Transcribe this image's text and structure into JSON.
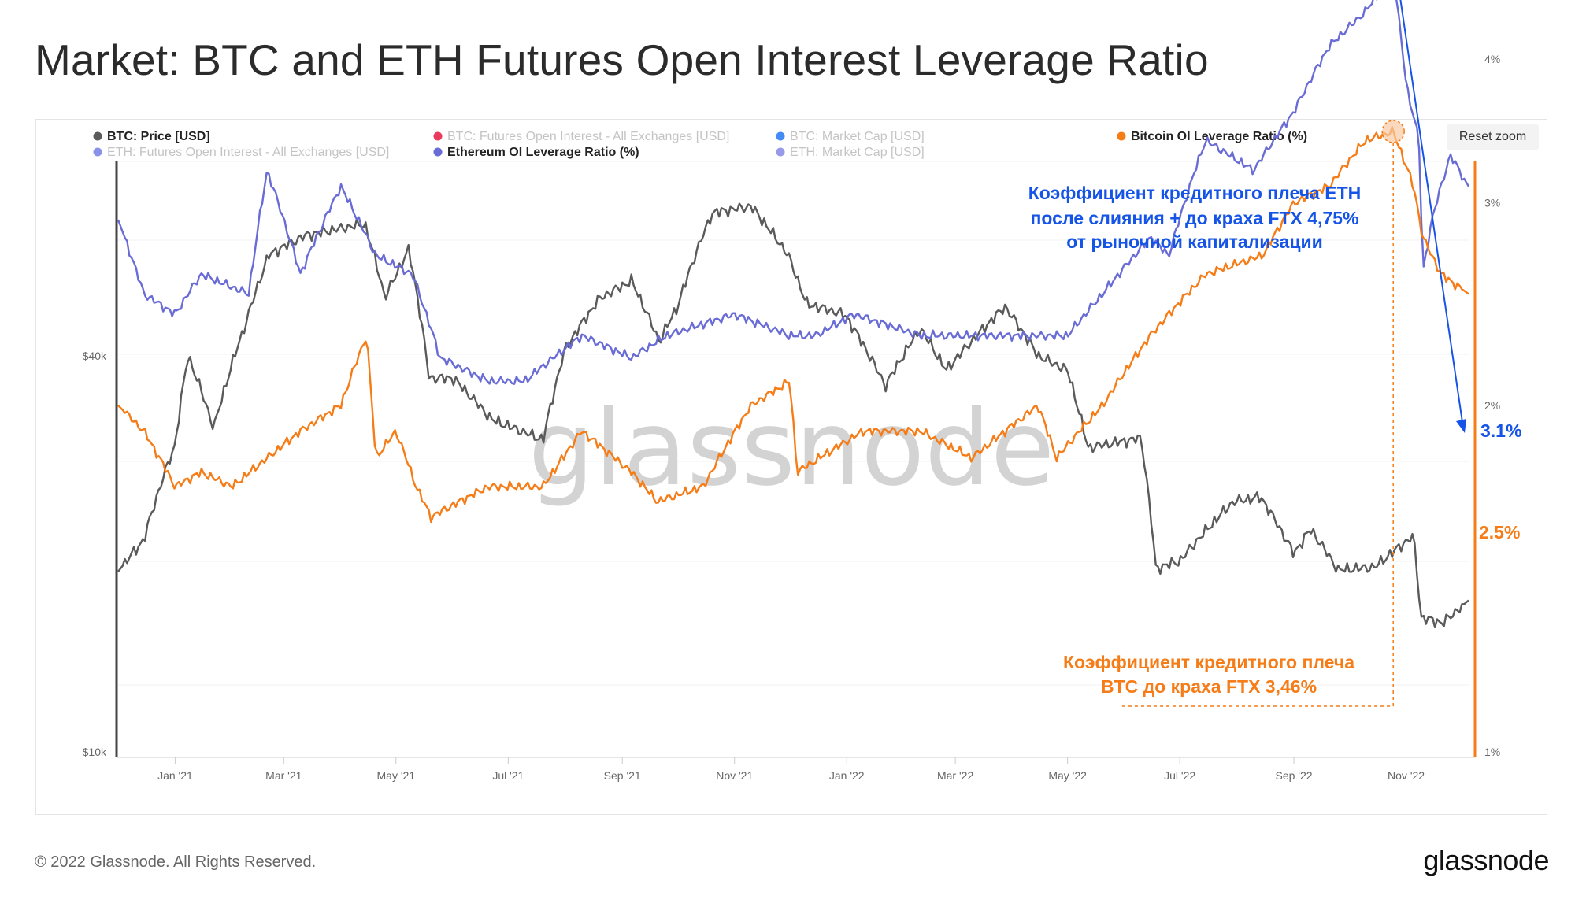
{
  "page_title": "Market: BTC and ETH Futures Open Interest Leverage Ratio",
  "reset_zoom_label": "Reset zoom",
  "watermark": "glassnode",
  "footer": {
    "copyright": "© 2022 Glassnode. All Rights Reserved.",
    "logo": "glassnode"
  },
  "colors": {
    "btc_price": "#5a5a5a",
    "eth_ratio": "#6a6cd6",
    "btc_ratio": "#f57c16",
    "eth_annotation": "#1554e6",
    "hidden": "#c8c8c8"
  },
  "legend": [
    {
      "label": "BTC: Price [USD]",
      "color": "#5a5a5a",
      "active": true
    },
    {
      "label": "BTC: Futures Open Interest - All Exchanges [USD]",
      "color": "#e8264d",
      "active": false
    },
    {
      "label": "BTC: Market Cap [USD]",
      "color": "#2f7ff5",
      "active": false
    },
    {
      "label": "Bitcoin OI Leverage Ratio (%)",
      "color": "#f57c16",
      "active": true
    },
    {
      "label": "ETH: Futures Open Interest - All Exchanges [USD]",
      "color": "#7b86e8",
      "active": false
    },
    {
      "label": "Ethereum OI Leverage Ratio (%)",
      "color": "#6a6cd6",
      "active": true
    },
    {
      "label": "ETH: Market Cap [USD]",
      "color": "#8e8ee8",
      "active": false
    }
  ],
  "annotations": {
    "eth": [
      "Коэффициент кредитного плеча ETH",
      "после слияния + до краха FTX 4,75%",
      "от рыночной капитализации"
    ],
    "btc": [
      "Коэффициент кредитного плеча",
      "BTC до краха FTX 3,46%"
    ],
    "eth_last": "3.1%",
    "btc_last": "2.5%"
  },
  "chart_data": {
    "type": "line",
    "title": "Market: BTC and ETH Futures Open Interest Leverage Ratio",
    "x_ticks": [
      "Jan '21",
      "Mar '21",
      "May '21",
      "Jul '21",
      "Sep '21",
      "Nov '21",
      "Jan '22",
      "Mar '22",
      "May '22",
      "Jul '22",
      "Sep '22",
      "Nov '22"
    ],
    "x_tick_dates": [
      "2021-01-01",
      "2021-03-01",
      "2021-05-01",
      "2021-07-01",
      "2021-09-01",
      "2021-11-01",
      "2022-01-01",
      "2022-03-01",
      "2022-05-01",
      "2022-07-01",
      "2022-09-01",
      "2022-11-01"
    ],
    "x_range": [
      "2020-12-01",
      "2022-12-05"
    ],
    "left_axis": {
      "label": "",
      "scale": "log",
      "ticks": [
        "$10k",
        "$40k"
      ],
      "tick_values": [
        10000,
        40000
      ],
      "ylim": [
        10000,
        70000
      ]
    },
    "right_axis": {
      "label": "",
      "scale": "log",
      "ticks": [
        "1%",
        "2%",
        "3%",
        "4%"
      ],
      "tick_values": [
        1,
        2,
        3,
        4
      ],
      "ylim": [
        1,
        5.5
      ]
    },
    "grid": true,
    "legend_position": "top",
    "series": [
      {
        "name": "BTC: Price [USD]",
        "axis": "left",
        "color": "#5a5a5a",
        "x": [
          "2020-12-01",
          "2020-12-15",
          "2021-01-01",
          "2021-01-08",
          "2021-01-22",
          "2021-02-08",
          "2021-02-21",
          "2021-03-13",
          "2021-04-14",
          "2021-04-25",
          "2021-05-08",
          "2021-05-19",
          "2021-06-01",
          "2021-06-22",
          "2021-07-20",
          "2021-08-01",
          "2021-08-20",
          "2021-09-06",
          "2021-09-21",
          "2021-10-01",
          "2021-10-20",
          "2021-11-10",
          "2021-11-30",
          "2021-12-10",
          "2021-12-31",
          "2022-01-22",
          "2022-02-10",
          "2022-02-24",
          "2022-03-28",
          "2022-04-15",
          "2022-05-01",
          "2022-05-12",
          "2022-06-10",
          "2022-06-18",
          "2022-07-01",
          "2022-07-30",
          "2022-08-14",
          "2022-09-01",
          "2022-09-10",
          "2022-09-25",
          "2022-10-15",
          "2022-11-05",
          "2022-11-09",
          "2022-11-21",
          "2022-12-05"
        ],
        "y": [
          18800,
          21000,
          29300,
          40000,
          31000,
          44500,
          57000,
          61000,
          63500,
          49000,
          58000,
          37000,
          37000,
          32000,
          29800,
          41000,
          49000,
          52000,
          42000,
          47500,
          66000,
          67500,
          57000,
          48000,
          46200,
          36000,
          44000,
          38000,
          47500,
          40000,
          38000,
          29000,
          30000,
          19000,
          19500,
          24000,
          24400,
          20000,
          21800,
          18900,
          19100,
          21300,
          16000,
          15700,
          17000
        ]
      },
      {
        "name": "Ethereum OI Leverage Ratio (%)",
        "axis": "right",
        "color": "#6a6cd6",
        "x": [
          "2020-12-01",
          "2020-12-15",
          "2021-01-01",
          "2021-01-15",
          "2021-02-10",
          "2021-02-20",
          "2021-03-10",
          "2021-04-01",
          "2021-04-20",
          "2021-05-10",
          "2021-05-25",
          "2021-06-20",
          "2021-07-10",
          "2021-08-10",
          "2021-09-06",
          "2021-09-25",
          "2021-11-01",
          "2021-12-01",
          "2021-12-15",
          "2022-01-05",
          "2022-02-10",
          "2022-03-10",
          "2022-04-01",
          "2022-05-01",
          "2022-05-20",
          "2022-06-15",
          "2022-06-25",
          "2022-07-15",
          "2022-08-10",
          "2022-09-01",
          "2022-09-20",
          "2022-10-10",
          "2022-10-25",
          "2022-11-01",
          "2022-11-08",
          "2022-11-10",
          "2022-11-15",
          "2022-11-25",
          "2022-12-05"
        ],
        "y": [
          2.9,
          2.5,
          2.4,
          2.6,
          2.5,
          3.2,
          2.6,
          3.1,
          2.7,
          2.6,
          2.2,
          2.1,
          2.1,
          2.3,
          2.2,
          2.3,
          2.4,
          2.3,
          2.3,
          2.4,
          2.3,
          2.3,
          2.3,
          2.3,
          2.5,
          2.8,
          2.7,
          3.4,
          3.2,
          3.6,
          4.1,
          4.4,
          4.75,
          3.8,
          3.4,
          2.6,
          2.9,
          3.3,
          3.1
        ]
      },
      {
        "name": "Bitcoin OI Leverage Ratio (%)",
        "axis": "right",
        "color": "#f57c16",
        "x": [
          "2020-12-01",
          "2020-12-15",
          "2021-01-01",
          "2021-01-15",
          "2021-02-01",
          "2021-02-20",
          "2021-03-10",
          "2021-04-01",
          "2021-04-15",
          "2021-04-20",
          "2021-05-01",
          "2021-05-12",
          "2021-05-20",
          "2021-06-20",
          "2021-07-20",
          "2021-08-10",
          "2021-09-06",
          "2021-09-20",
          "2021-10-15",
          "2021-11-10",
          "2021-12-01",
          "2021-12-05",
          "2022-01-10",
          "2022-02-10",
          "2022-03-10",
          "2022-04-15",
          "2022-04-25",
          "2022-05-20",
          "2022-06-15",
          "2022-07-15",
          "2022-08-15",
          "2022-09-01",
          "2022-09-20",
          "2022-10-10",
          "2022-10-25",
          "2022-11-05",
          "2022-11-10",
          "2022-11-20",
          "2022-12-05"
        ],
        "y": [
          2.0,
          1.9,
          1.7,
          1.75,
          1.7,
          1.8,
          1.9,
          2.0,
          2.3,
          1.8,
          1.9,
          1.7,
          1.6,
          1.7,
          1.7,
          1.9,
          1.75,
          1.65,
          1.7,
          2.0,
          2.1,
          1.75,
          1.9,
          1.9,
          1.8,
          2.0,
          1.8,
          2.0,
          2.3,
          2.6,
          2.7,
          3.0,
          3.1,
          3.4,
          3.46,
          3.1,
          2.8,
          2.6,
          2.5
        ]
      }
    ]
  }
}
